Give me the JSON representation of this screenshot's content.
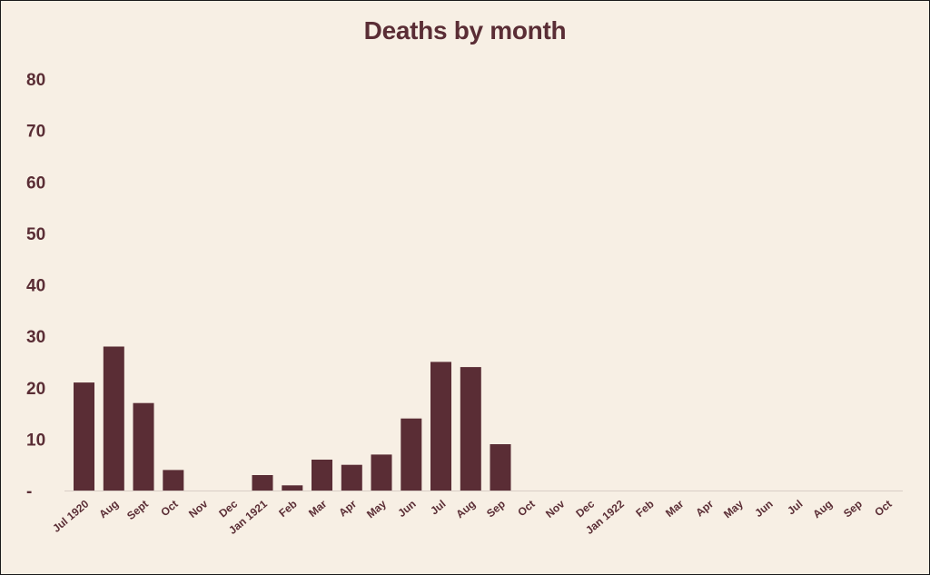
{
  "chart_data": {
    "type": "bar",
    "title": "Deaths by month",
    "xlabel": "",
    "ylabel": "",
    "ylim": [
      0,
      80
    ],
    "yticks": [
      0,
      10,
      20,
      30,
      40,
      50,
      60,
      70,
      80
    ],
    "ytick_labels": [
      "-",
      "10",
      "20",
      "30",
      "40",
      "50",
      "60",
      "70",
      "80"
    ],
    "grid": false,
    "colors": {
      "bar": "#5a2d35",
      "background": "#f7efe4",
      "text": "#5a2d35"
    },
    "categories": [
      "Jul 1920",
      "Aug",
      "Sept",
      "Oct",
      "Nov",
      "Dec",
      "Jan 1921",
      "Feb",
      "Mar",
      "Apr",
      "May",
      "Jun",
      "Jul",
      "Aug",
      "Sep",
      "Oct",
      "Nov",
      "Dec",
      "Jan 1922",
      "Feb",
      "Mar",
      "Apr",
      "May",
      "Jun",
      "Jul",
      "Aug",
      "Sep",
      "Oct"
    ],
    "values": [
      21,
      28,
      17,
      4,
      0,
      0,
      3,
      1,
      6,
      5,
      7,
      14,
      25,
      24,
      9,
      0,
      0,
      0,
      0,
      0,
      0,
      0,
      0,
      0,
      0,
      0,
      0,
      0
    ]
  }
}
